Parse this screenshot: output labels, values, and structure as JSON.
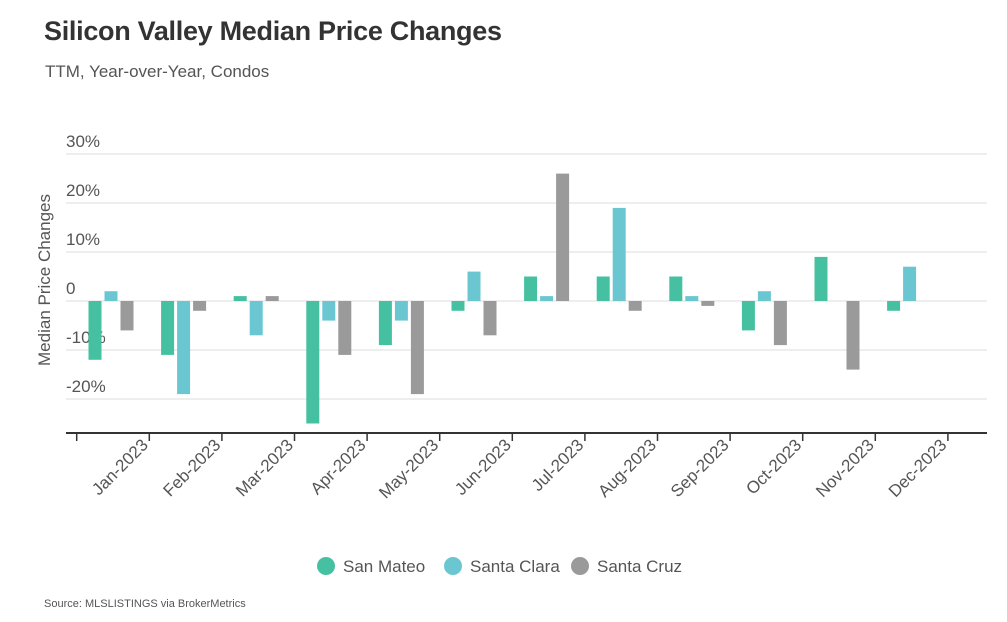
{
  "header": {
    "title": "Silicon Valley Median Price Changes",
    "subtitle": "TTM, Year-over-Year, Condos"
  },
  "footer": {
    "source": "Source:  MLSLISTINGS via BrokerMetrics"
  },
  "colors": {
    "san_mateo": "#45c1a1",
    "santa_clara": "#6ac7d2",
    "santa_cruz": "#9a9a9a",
    "grid": "#dddddd",
    "axis": "#333333"
  },
  "chart_data": {
    "type": "bar",
    "title": "Silicon Valley Median Price Changes",
    "subtitle": "TTM, Year-over-Year, Condos",
    "xlabel": "",
    "ylabel": "Median Price Changes",
    "ylim": [
      -27,
      33
    ],
    "yticks": [
      30,
      20,
      10,
      0,
      -10,
      -20
    ],
    "ytick_labels": [
      "30%",
      "20%",
      "10%",
      "0",
      "-10%",
      "-20%"
    ],
    "grid": true,
    "legend": "bottom-center",
    "categories": [
      "Jan-2023",
      "Feb-2023",
      "Mar-2023",
      "Apr-2023",
      "May-2023",
      "Jun-2023",
      "Jul-2023",
      "Aug-2023",
      "Sep-2023",
      "Oct-2023",
      "Nov-2023",
      "Dec-2023"
    ],
    "series": [
      {
        "name": "San Mateo",
        "color": "#45c1a1",
        "values": [
          -12,
          -11,
          1,
          -25,
          -9,
          -2,
          5,
          5,
          5,
          -6,
          9,
          -2
        ]
      },
      {
        "name": "Santa Clara",
        "color": "#6ac7d2",
        "values": [
          2,
          -19,
          -7,
          -4,
          -4,
          6,
          1,
          19,
          1,
          2,
          0,
          7
        ]
      },
      {
        "name": "Santa Cruz",
        "color": "#9a9a9a",
        "values": [
          -6,
          -2,
          1,
          -11,
          -19,
          -7,
          26,
          -2,
          -1,
          -9,
          -14,
          0
        ]
      }
    ]
  }
}
